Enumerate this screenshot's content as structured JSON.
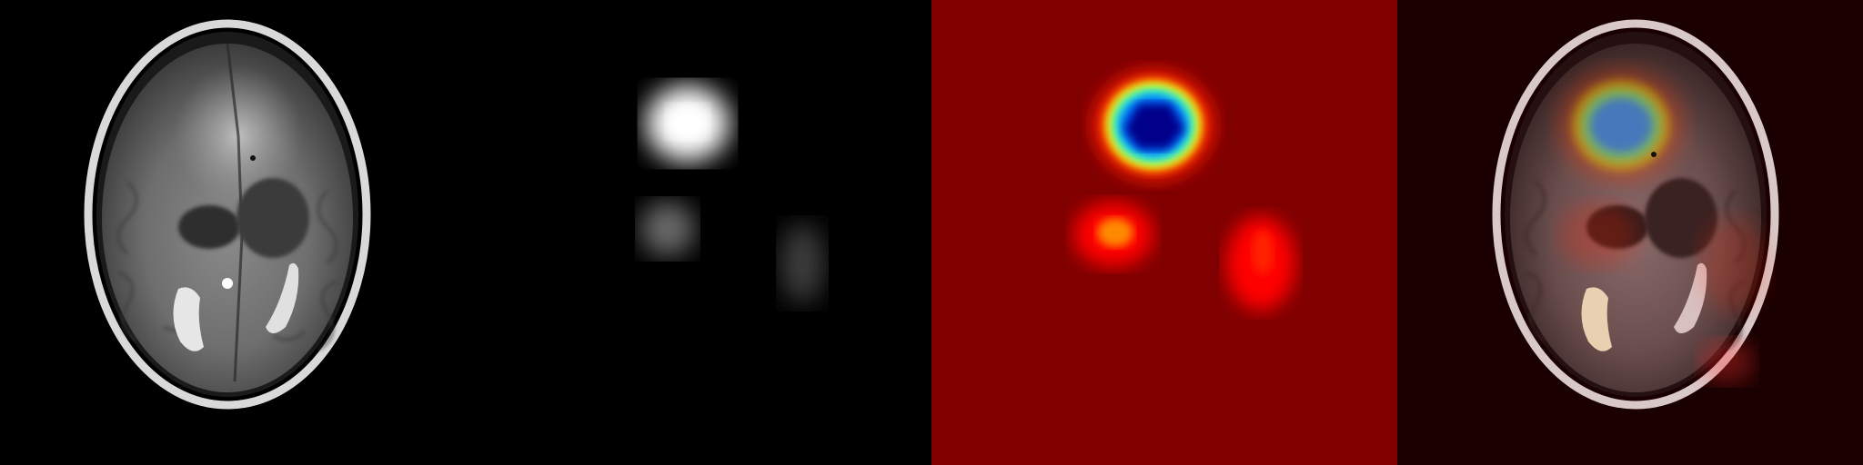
{
  "panels": [
    {
      "id": "original",
      "kind": "brain-mri-axial-grayscale"
    },
    {
      "id": "saliency-grayscale",
      "kind": "grayscale-saliency-map"
    },
    {
      "id": "saliency-jet",
      "kind": "jet-colormap-heatmap"
    },
    {
      "id": "overlay",
      "kind": "heatmap-overlay-on-mri"
    }
  ],
  "colors": {
    "background": "#000000",
    "jet_base": "#800000",
    "jet_red": "#ff0000",
    "jet_yellow": "#ffff00",
    "jet_cyan": "#00ffff",
    "jet_blue": "#0000ff",
    "jet_deep_blue": "#00008a"
  }
}
